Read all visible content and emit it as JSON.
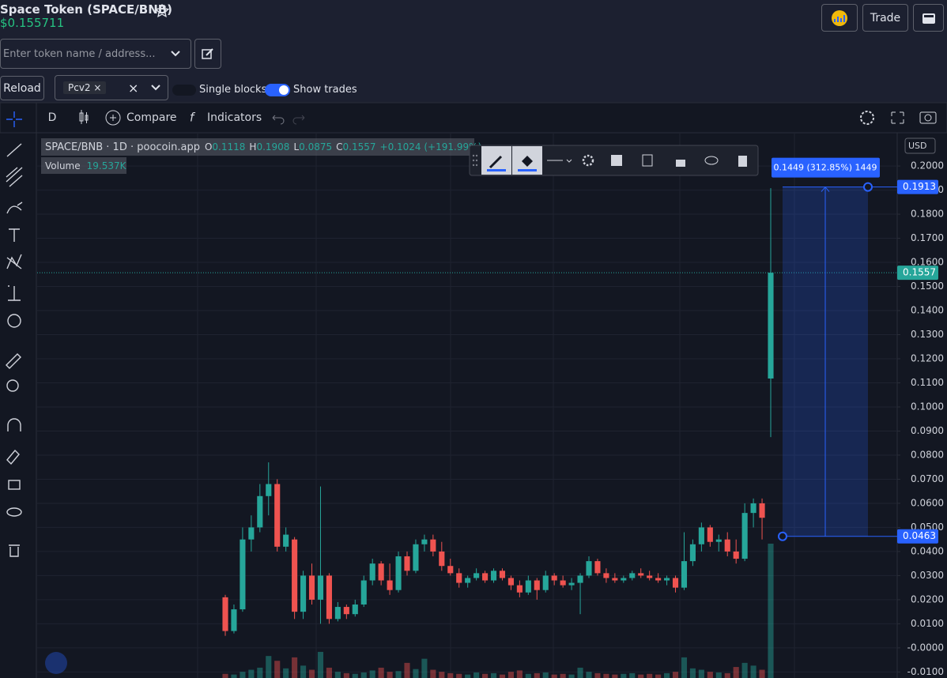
{
  "header": {
    "title": "Space Token (SPACE/BNB)",
    "price": "$0.155711",
    "trade_button": "Trade"
  },
  "search": {
    "placeholder": "Enter token name / address..."
  },
  "controls": {
    "reload": "Reload",
    "pair": "Pcv2",
    "single_blocks": "Single blocks",
    "show_trades": "Show trades"
  },
  "toolbar": {
    "interval": "D",
    "compare": "Compare",
    "indicators": "Indicators"
  },
  "chart_data": {
    "type": "candlestick",
    "title": "SPACE/BNB · 1D · poocoin.app",
    "ohlc_labels": [
      "O",
      "H",
      "L",
      "C"
    ],
    "change": "+0.1024 (+191.99%)",
    "volume_title": "Volume",
    "volume_last_label": "19.537K",
    "currency": "USD",
    "up_color": "#26a69a",
    "down_color": "#ef5350",
    "open": [
      0.021,
      0.007,
      0.016,
      0.045,
      0.05,
      0.063,
      0.068,
      0.042,
      0.045,
      0.015,
      0.03,
      0.02,
      0.03,
      0.012,
      0.017,
      0.014,
      0.018,
      0.028,
      0.035,
      0.028,
      0.024,
      0.038,
      0.032,
      0.043,
      0.045,
      0.04,
      0.034,
      0.031,
      0.027,
      0.029,
      0.031,
      0.028,
      0.032,
      0.029,
      0.026,
      0.023,
      0.028,
      0.024,
      0.03,
      0.028,
      0.026,
      0.027,
      0.03,
      0.036,
      0.031,
      0.029,
      0.028,
      0.029,
      0.031,
      0.03,
      0.029,
      0.028,
      0.029,
      0.025,
      0.036,
      0.043,
      0.05,
      0.044,
      0.045,
      0.04,
      0.037,
      0.056,
      0.06,
      0.1118
    ],
    "high": [
      0.022,
      0.018,
      0.05,
      0.055,
      0.068,
      0.077,
      0.07,
      0.05,
      0.046,
      0.032,
      0.035,
      0.067,
      0.031,
      0.019,
      0.018,
      0.02,
      0.03,
      0.037,
      0.036,
      0.035,
      0.04,
      0.04,
      0.045,
      0.047,
      0.047,
      0.044,
      0.037,
      0.033,
      0.03,
      0.033,
      0.032,
      0.033,
      0.033,
      0.03,
      0.028,
      0.03,
      0.029,
      0.032,
      0.031,
      0.03,
      0.029,
      0.031,
      0.038,
      0.037,
      0.033,
      0.031,
      0.03,
      0.032,
      0.033,
      0.032,
      0.031,
      0.03,
      0.03,
      0.048,
      0.045,
      0.052,
      0.051,
      0.047,
      0.048,
      0.045,
      0.06,
      0.062,
      0.062,
      0.1908
    ],
    "low": [
      0.005,
      0.006,
      0.015,
      0.04,
      0.048,
      0.055,
      0.04,
      0.04,
      0.012,
      0.012,
      0.018,
      0.01,
      0.01,
      0.011,
      0.012,
      0.013,
      0.017,
      0.026,
      0.026,
      0.022,
      0.023,
      0.03,
      0.031,
      0.04,
      0.038,
      0.032,
      0.03,
      0.025,
      0.025,
      0.028,
      0.027,
      0.027,
      0.028,
      0.024,
      0.021,
      0.022,
      0.02,
      0.023,
      0.026,
      0.025,
      0.024,
      0.014,
      0.029,
      0.03,
      0.027,
      0.027,
      0.027,
      0.028,
      0.029,
      0.028,
      0.027,
      0.026,
      0.023,
      0.024,
      0.034,
      0.04,
      0.042,
      0.04,
      0.038,
      0.035,
      0.036,
      0.05,
      0.045,
      0.0875
    ],
    "close": [
      0.007,
      0.016,
      0.045,
      0.05,
      0.063,
      0.068,
      0.042,
      0.047,
      0.015,
      0.03,
      0.02,
      0.03,
      0.012,
      0.017,
      0.014,
      0.018,
      0.028,
      0.035,
      0.028,
      0.024,
      0.038,
      0.032,
      0.043,
      0.045,
      0.04,
      0.034,
      0.031,
      0.027,
      0.029,
      0.031,
      0.028,
      0.032,
      0.029,
      0.026,
      0.023,
      0.028,
      0.024,
      0.03,
      0.028,
      0.026,
      0.027,
      0.03,
      0.036,
      0.031,
      0.029,
      0.028,
      0.029,
      0.031,
      0.03,
      0.029,
      0.028,
      0.029,
      0.025,
      0.036,
      0.043,
      0.05,
      0.044,
      0.045,
      0.04,
      0.037,
      0.056,
      0.06,
      0.054,
      0.1557
    ],
    "volume": [
      600,
      500,
      900,
      1200,
      1500,
      3200,
      2500,
      1400,
      3000,
      1800,
      1200,
      3800,
      1500,
      900,
      700,
      600,
      800,
      1100,
      1500,
      900,
      1000,
      2200,
      1300,
      2800,
      1200,
      900,
      700,
      600,
      500,
      800,
      600,
      700,
      500,
      900,
      1100,
      600,
      700,
      800,
      500,
      600,
      500,
      1500,
      900,
      700,
      600,
      500,
      600,
      700,
      500,
      600,
      500,
      700,
      900,
      3000,
      1400,
      1200,
      900,
      800,
      700,
      1600,
      2200,
      1800,
      1200,
      19537
    ],
    "ylim": [
      -0.0125,
      0.2138
    ],
    "yticks": [
      {
        "value": 0.2,
        "label": "0.2000"
      },
      {
        "value": 0.19,
        "label": "0.1900"
      },
      {
        "value": 0.18,
        "label": "0.1800"
      },
      {
        "value": 0.17,
        "label": "0.1700"
      },
      {
        "value": 0.16,
        "label": "0.1600"
      },
      {
        "value": 0.15,
        "label": "0.1500"
      },
      {
        "value": 0.14,
        "label": "0.1400"
      },
      {
        "value": 0.13,
        "label": "0.1300"
      },
      {
        "value": 0.12,
        "label": "0.1200"
      },
      {
        "value": 0.11,
        "label": "0.1100"
      },
      {
        "value": 0.1,
        "label": "0.1000"
      },
      {
        "value": 0.09,
        "label": "0.0900"
      },
      {
        "value": 0.08,
        "label": "0.0800"
      },
      {
        "value": 0.07,
        "label": "0.0700"
      },
      {
        "value": 0.06,
        "label": "0.0600"
      },
      {
        "value": 0.05,
        "label": "0.0500"
      },
      {
        "value": 0.04,
        "label": "0.0400"
      },
      {
        "value": 0.03,
        "label": "0.0300"
      },
      {
        "value": 0.02,
        "label": "0.0200"
      },
      {
        "value": 0.01,
        "label": "0.0100"
      },
      {
        "value": 0,
        "label": "-0.0000"
      },
      {
        "value": -0.01,
        "label": "-0.0100"
      }
    ],
    "grid": true,
    "current_price": 0.1557,
    "measure": {
      "label": "0.1449 (312.85%) 1449",
      "from": 0.0463,
      "to": 0.1913,
      "color": "#2962ff"
    }
  }
}
